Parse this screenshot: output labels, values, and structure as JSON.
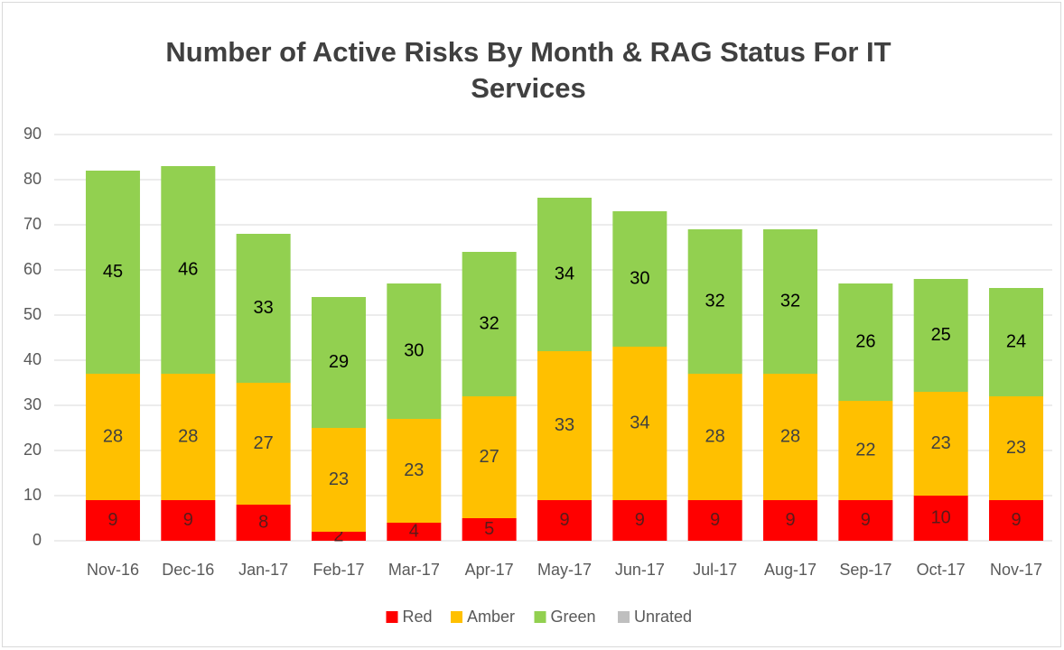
{
  "chart_data": {
    "type": "stacked_bar",
    "title": "Number of Active Risks By Month & RAG Status For IT Services",
    "categories": [
      "Nov-16",
      "Dec-16",
      "Jan-17",
      "Feb-17",
      "Mar-17",
      "Apr-17",
      "May-17",
      "Jun-17",
      "Jul-17",
      "Aug-17",
      "Sep-17",
      "Oct-17",
      "Nov-17"
    ],
    "series": [
      {
        "name": "Red",
        "color": "#ff0000",
        "values": [
          9,
          9,
          8,
          2,
          4,
          5,
          9,
          9,
          9,
          9,
          9,
          10,
          9
        ]
      },
      {
        "name": "Amber",
        "color": "#ffc000",
        "values": [
          28,
          28,
          27,
          23,
          23,
          27,
          33,
          34,
          28,
          28,
          22,
          23,
          23
        ]
      },
      {
        "name": "Green",
        "color": "#92d050",
        "values": [
          45,
          46,
          33,
          29,
          30,
          32,
          34,
          30,
          32,
          32,
          26,
          25,
          24
        ]
      },
      {
        "name": "Unrated",
        "color": "#bfbfbf",
        "values": [
          0,
          0,
          0,
          0,
          0,
          0,
          0,
          0,
          0,
          0,
          0,
          0,
          0
        ]
      }
    ],
    "ylim": [
      0,
      90
    ],
    "yticks": [
      0,
      10,
      20,
      30,
      40,
      50,
      60,
      70,
      80,
      90
    ],
    "grid": true,
    "legend": "bottom"
  }
}
